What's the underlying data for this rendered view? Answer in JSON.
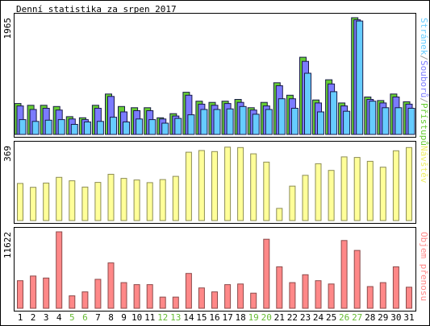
{
  "title": "Denní statistika za srpen 2017",
  "panels": {
    "top": {
      "ymax_label": "1965",
      "legend": [
        {
          "text": "Stránek",
          "color": "#66ccff"
        },
        {
          "text": "/",
          "color": "#999999"
        },
        {
          "text": "Souborů",
          "color": "#7b7bff"
        },
        {
          "text": "/",
          "color": "#999999"
        },
        {
          "text": "Přístupů",
          "color": "#66cc33"
        }
      ]
    },
    "middle": {
      "ymax_label": "369",
      "legend": [
        {
          "text": "Návštěv",
          "color": "#eeee66"
        }
      ]
    },
    "bottom": {
      "ymax_label": "11622",
      "legend": [
        {
          "text": "Objem přenosu",
          "color": "#ff8888"
        }
      ]
    }
  },
  "chart_data": [
    {
      "type": "bar",
      "title": "Denní statistika za srpen 2017",
      "categories": [
        "1",
        "2",
        "3",
        "4",
        "5",
        "6",
        "7",
        "8",
        "9",
        "10",
        "11",
        "12",
        "13",
        "14",
        "15",
        "16",
        "17",
        "18",
        "19",
        "20",
        "21",
        "22",
        "23",
        "24",
        "25",
        "26",
        "27",
        "28",
        "29",
        "30",
        "31"
      ],
      "weekend_days": [
        "5",
        "6",
        "12",
        "13",
        "19",
        "20",
        "26",
        "27"
      ],
      "ylim": [
        0,
        1965
      ],
      "series": [
        {
          "name": "Přístupů",
          "color": "#66cc33",
          "values": [
            520,
            490,
            490,
            470,
            300,
            280,
            490,
            680,
            470,
            450,
            450,
            280,
            350,
            710,
            560,
            540,
            560,
            590,
            450,
            540,
            870,
            660,
            1300,
            580,
            920,
            530,
            1965,
            630,
            570,
            680,
            550
          ]
        },
        {
          "name": "Souborů",
          "color": "#7b7bff",
          "values": [
            480,
            420,
            440,
            410,
            260,
            250,
            440,
            640,
            380,
            400,
            400,
            260,
            310,
            660,
            510,
            490,
            520,
            540,
            410,
            480,
            820,
            600,
            1230,
            530,
            850,
            480,
            1930,
            590,
            530,
            630,
            510
          ]
        },
        {
          "name": "Stránek",
          "color": "#66ccff",
          "values": [
            250,
            220,
            240,
            250,
            170,
            210,
            220,
            290,
            210,
            260,
            250,
            190,
            270,
            330,
            420,
            420,
            430,
            470,
            340,
            420,
            600,
            440,
            1030,
            380,
            720,
            390,
            1910,
            560,
            450,
            450,
            440
          ]
        }
      ]
    },
    {
      "type": "bar",
      "categories": [
        "1",
        "2",
        "3",
        "4",
        "5",
        "6",
        "7",
        "8",
        "9",
        "10",
        "11",
        "12",
        "13",
        "14",
        "15",
        "16",
        "17",
        "18",
        "19",
        "20",
        "21",
        "22",
        "23",
        "24",
        "25",
        "26",
        "27",
        "28",
        "29",
        "30",
        "31"
      ],
      "ylim": [
        0,
        369
      ],
      "series": [
        {
          "name": "Návštěv",
          "color": "#ffff99",
          "values": [
            183,
            164,
            185,
            213,
            196,
            165,
            188,
            228,
            208,
            200,
            187,
            202,
            218,
            337,
            345,
            340,
            362,
            360,
            329,
            288,
            60,
            170,
            223,
            280,
            247,
            314,
            311,
            292,
            263,
            344,
            360
          ]
        }
      ]
    },
    {
      "type": "bar",
      "categories": [
        "1",
        "2",
        "3",
        "4",
        "5",
        "6",
        "7",
        "8",
        "9",
        "10",
        "11",
        "12",
        "13",
        "14",
        "15",
        "16",
        "17",
        "18",
        "19",
        "20",
        "21",
        "22",
        "23",
        "24",
        "25",
        "26",
        "27",
        "28",
        "29",
        "30",
        "31"
      ],
      "ylim": [
        0,
        11622
      ],
      "series": [
        {
          "name": "Objem přenosu",
          "color": "#ff8888",
          "values": [
            4200,
            4900,
            4600,
            11622,
            1900,
            2500,
            4400,
            6900,
            3900,
            3600,
            3600,
            1700,
            1700,
            5300,
            3100,
            2500,
            3600,
            3700,
            2300,
            10500,
            6300,
            3900,
            5100,
            4200,
            3700,
            10300,
            8800,
            3300,
            3900,
            6300,
            3200
          ]
        }
      ]
    }
  ]
}
